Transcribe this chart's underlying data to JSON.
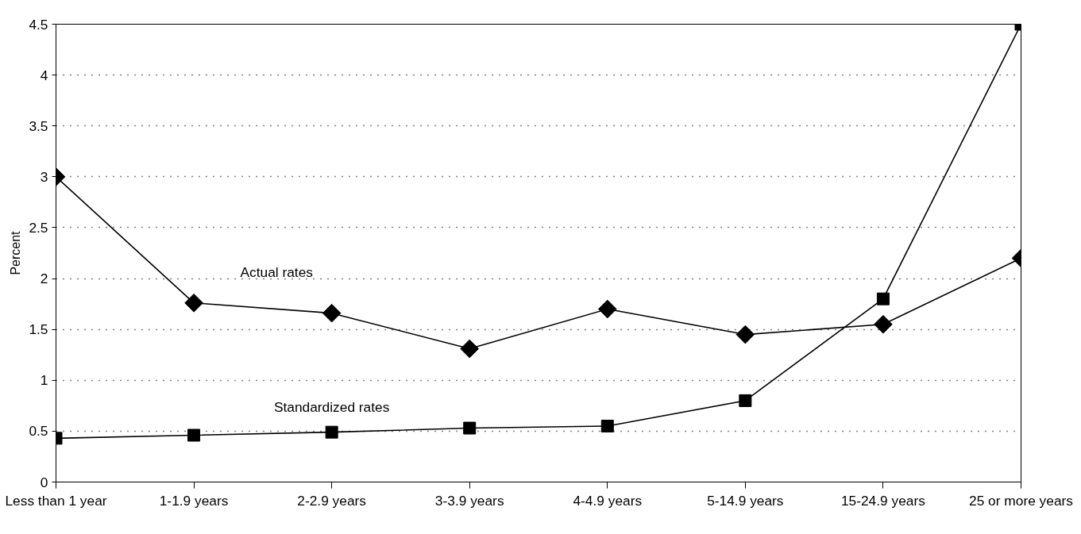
{
  "chart_data": {
    "type": "line",
    "ylabel": "Percent",
    "categories": [
      "Less than 1 year",
      "1-1.9 years",
      "2-2.9 years",
      "3-3.9 years",
      "4-4.9 years",
      "5-14.9 years",
      "15-24.9 years",
      "25 or more years"
    ],
    "series": [
      {
        "name": "Actual rates",
        "color": "#000000",
        "marker": "diamond",
        "values": [
          3.0,
          1.76,
          1.66,
          1.31,
          1.7,
          1.45,
          1.55,
          2.2
        ]
      },
      {
        "name": "Standardized rates",
        "color": "#000000",
        "marker": "square",
        "values": [
          0.43,
          0.46,
          0.49,
          0.53,
          0.55,
          0.8,
          1.8,
          4.5
        ]
      }
    ],
    "ylim": [
      0,
      4.5
    ],
    "yticks": [
      0,
      0.5,
      1,
      1.5,
      2,
      2.5,
      3,
      3.5,
      4,
      4.5
    ],
    "grid": "y",
    "legend": false,
    "line_style": "solid"
  }
}
